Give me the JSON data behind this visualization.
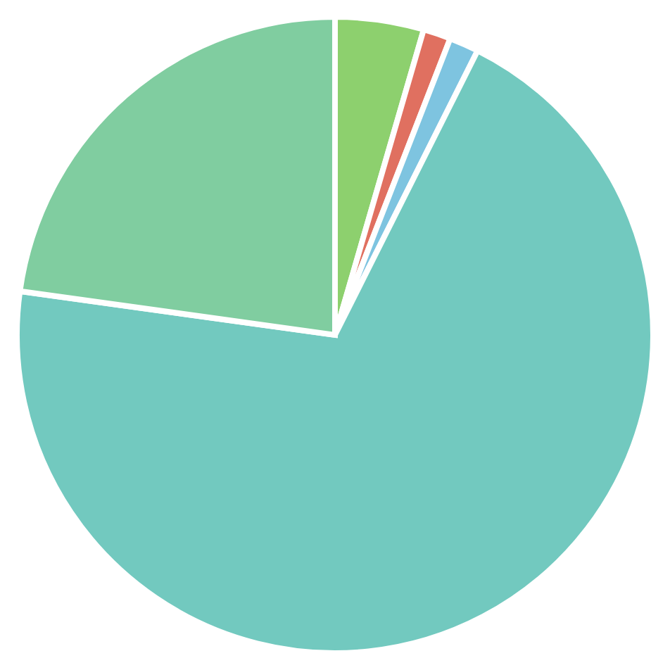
{
  "chart_data": {
    "type": "pie",
    "categories": [
      null,
      null,
      null,
      null,
      null
    ],
    "values": [
      4.5,
      1.4,
      1.5,
      69.8,
      22.8
    ],
    "colors": [
      "#8dd06e",
      "#e07060",
      "#7ec4e0",
      "#72c9bf",
      "#80cda0"
    ],
    "legend": false
  }
}
